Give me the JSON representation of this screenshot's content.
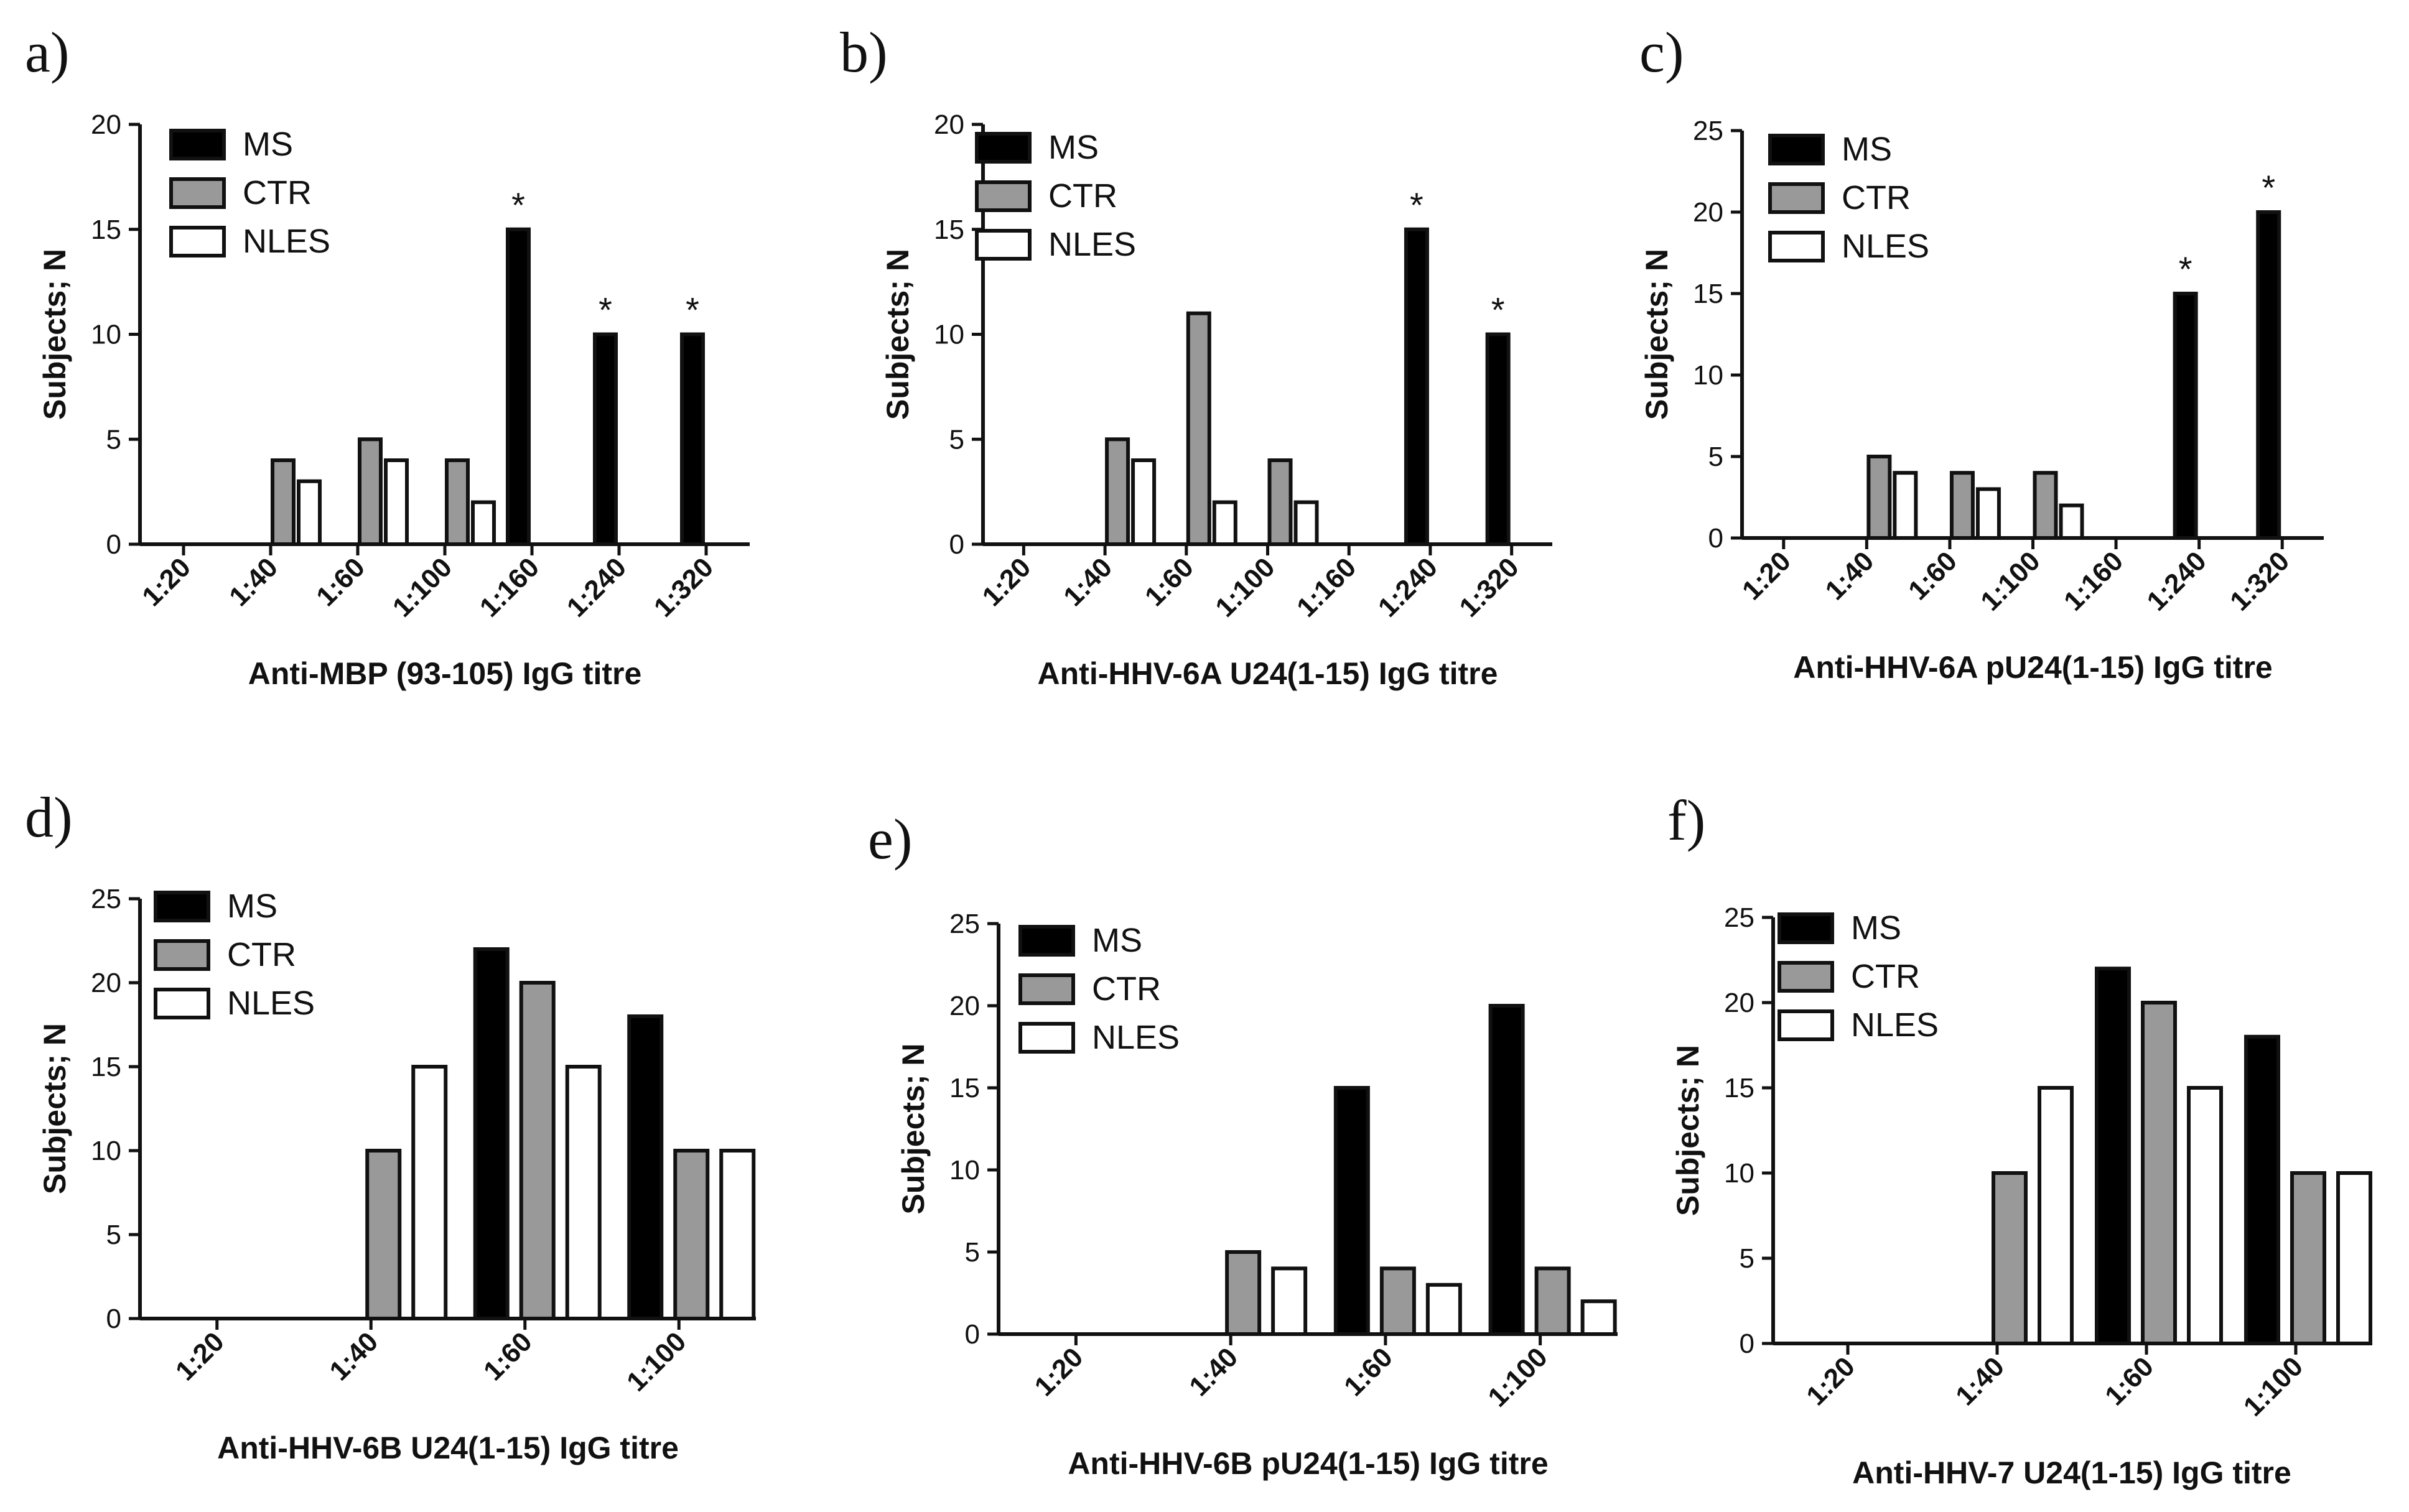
{
  "chart_data": [
    {
      "type": "bar",
      "panel": "a)",
      "categories": [
        "1:20",
        "1:40",
        "1:60",
        "1:100",
        "1:160",
        "1:240",
        "1:320"
      ],
      "series": [
        {
          "name": "MS",
          "values": [
            0,
            0,
            0,
            0,
            15,
            10,
            10
          ]
        },
        {
          "name": "CTR",
          "values": [
            0,
            4,
            5,
            4,
            0,
            0,
            0
          ]
        },
        {
          "name": "NLES",
          "values": [
            0,
            3,
            4,
            2,
            0,
            0,
            0
          ]
        }
      ],
      "significant": [
        4,
        5,
        6
      ],
      "significance_mark": "*",
      "xlabel": "Anti-MBP (93-105) IgG titre",
      "ylabel": "Subjects; N",
      "ylim": [
        0,
        20
      ],
      "yticks": [
        0,
        5,
        10,
        15,
        20
      ],
      "legend": "top-left"
    },
    {
      "type": "bar",
      "panel": "b)",
      "categories": [
        "1:20",
        "1:40",
        "1:60",
        "1:100",
        "1:160",
        "1:240",
        "1:320"
      ],
      "series": [
        {
          "name": "MS",
          "values": [
            0,
            0,
            0,
            0,
            0,
            15,
            10
          ]
        },
        {
          "name": "CTR",
          "values": [
            0,
            5,
            11,
            4,
            0,
            0,
            0
          ]
        },
        {
          "name": "NLES",
          "values": [
            0,
            4,
            2,
            2,
            0,
            0,
            0
          ]
        }
      ],
      "significant": [
        5,
        6
      ],
      "significance_mark": "*",
      "xlabel": "Anti-HHV-6A U24(1-15) IgG titre",
      "ylabel": "Subjects; N",
      "ylim": [
        0,
        20
      ],
      "yticks": [
        0,
        5,
        10,
        15,
        20
      ],
      "legend": "top-left"
    },
    {
      "type": "bar",
      "panel": "c)",
      "categories": [
        "1:20",
        "1:40",
        "1:60",
        "1:100",
        "1:160",
        "1:240",
        "1:320"
      ],
      "series": [
        {
          "name": "MS",
          "values": [
            0,
            0,
            0,
            0,
            0,
            15,
            20
          ]
        },
        {
          "name": "CTR",
          "values": [
            0,
            5,
            4,
            4,
            0,
            0,
            0
          ]
        },
        {
          "name": "NLES",
          "values": [
            0,
            4,
            3,
            2,
            0,
            0,
            0
          ]
        }
      ],
      "significant": [
        5,
        6
      ],
      "significance_mark": "*",
      "xlabel": "Anti-HHV-6A pU24(1-15) IgG titre",
      "ylabel": "Subjects; N",
      "ylim": [
        0,
        25
      ],
      "yticks": [
        0,
        5,
        10,
        15,
        20,
        25
      ],
      "legend": "top-left"
    },
    {
      "type": "bar",
      "panel": "d)",
      "categories": [
        "1:20",
        "1:40",
        "1:60",
        "1:100"
      ],
      "series": [
        {
          "name": "MS",
          "values": [
            0,
            0,
            22,
            18
          ]
        },
        {
          "name": "CTR",
          "values": [
            0,
            10,
            20,
            10
          ]
        },
        {
          "name": "NLES",
          "values": [
            0,
            15,
            15,
            10
          ]
        }
      ],
      "significant": [],
      "xlabel": "Anti-HHV-6B U24(1-15) IgG titre",
      "ylabel": "Subjects; N",
      "ylim": [
        0,
        25
      ],
      "yticks": [
        0,
        5,
        10,
        15,
        20,
        25
      ],
      "legend": "top-left"
    },
    {
      "type": "bar",
      "panel": "e)",
      "categories": [
        "1:20",
        "1:40",
        "1:60",
        "1:100"
      ],
      "series": [
        {
          "name": "MS",
          "values": [
            0,
            0,
            15,
            20
          ]
        },
        {
          "name": "CTR",
          "values": [
            0,
            5,
            4,
            4
          ]
        },
        {
          "name": "NLES",
          "values": [
            0,
            4,
            3,
            2
          ]
        }
      ],
      "significant": [],
      "xlabel": "Anti-HHV-6B pU24(1-15) IgG titre",
      "ylabel": "Subjects; N",
      "ylim": [
        0,
        25
      ],
      "yticks": [
        0,
        5,
        10,
        15,
        20,
        25
      ],
      "legend": "top-left"
    },
    {
      "type": "bar",
      "panel": "f)",
      "categories": [
        "1:20",
        "1:40",
        "1:60",
        "1:100"
      ],
      "series": [
        {
          "name": "MS",
          "values": [
            0,
            0,
            22,
            18
          ]
        },
        {
          "name": "CTR",
          "values": [
            0,
            10,
            20,
            10
          ]
        },
        {
          "name": "NLES",
          "values": [
            0,
            15,
            15,
            10
          ]
        }
      ],
      "significant": [],
      "xlabel": "Anti-HHV-7 U24(1-15) IgG titre",
      "ylabel": "Subjects; N",
      "ylim": [
        0,
        25
      ],
      "yticks": [
        0,
        5,
        10,
        15,
        20,
        25
      ],
      "legend": "top-left"
    }
  ],
  "colors": {
    "MS": "#000000",
    "CTR": "#999999",
    "NLES": "#ffffff",
    "axis": "#111111"
  }
}
